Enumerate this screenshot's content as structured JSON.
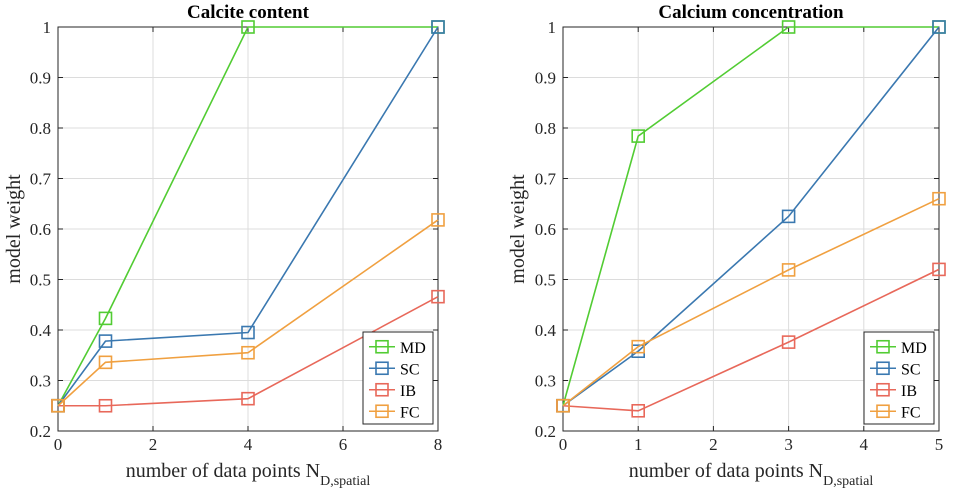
{
  "chart_data": [
    {
      "type": "line",
      "title": "Calcite content",
      "xlabel": "number of data points N",
      "xlabel_sub": "D,spatial",
      "ylabel": "model weight",
      "xlim": [
        0,
        8
      ],
      "ylim": [
        0.2,
        1
      ],
      "xticks": [
        "0",
        "2",
        "4",
        "6",
        "8"
      ],
      "yticks": [
        "0.2",
        "0.3",
        "0.4",
        "0.5",
        "0.6",
        "0.7",
        "0.8",
        "0.9",
        "1"
      ],
      "grid": true,
      "legend_position": "bottom-right",
      "x": [
        0,
        1,
        4,
        8
      ],
      "series": [
        {
          "name": "MD",
          "color": "#52cc33",
          "values": [
            0.25,
            0.423,
            1.0,
            1.0
          ]
        },
        {
          "name": "SC",
          "color": "#3a78b0",
          "values": [
            0.25,
            0.378,
            0.395,
            1.0
          ]
        },
        {
          "name": "IB",
          "color": "#e8685a",
          "values": [
            0.25,
            0.25,
            0.264,
            0.466
          ]
        },
        {
          "name": "FC",
          "color": "#f0a040",
          "values": [
            0.25,
            0.336,
            0.355,
            0.618
          ]
        }
      ]
    },
    {
      "type": "line",
      "title": "Calcium concentration",
      "xlabel": "number of data points N",
      "xlabel_sub": "D,spatial",
      "ylabel": "model weight",
      "xlim": [
        0,
        5
      ],
      "ylim": [
        0.2,
        1
      ],
      "xticks": [
        "0",
        "1",
        "2",
        "3",
        "4",
        "5"
      ],
      "yticks": [
        "0.2",
        "0.3",
        "0.4",
        "0.5",
        "0.6",
        "0.7",
        "0.8",
        "0.9",
        "1"
      ],
      "grid": true,
      "legend_position": "bottom-right",
      "x": [
        0,
        1,
        3,
        5
      ],
      "series": [
        {
          "name": "MD",
          "color": "#52cc33",
          "values": [
            0.25,
            0.784,
            1.0,
            1.0
          ]
        },
        {
          "name": "SC",
          "color": "#3a78b0",
          "values": [
            0.25,
            0.358,
            0.625,
            1.0
          ]
        },
        {
          "name": "IB",
          "color": "#e8685a",
          "values": [
            0.25,
            0.24,
            0.376,
            0.52
          ]
        },
        {
          "name": "FC",
          "color": "#f0a040",
          "values": [
            0.25,
            0.367,
            0.519,
            0.66
          ]
        }
      ]
    }
  ]
}
